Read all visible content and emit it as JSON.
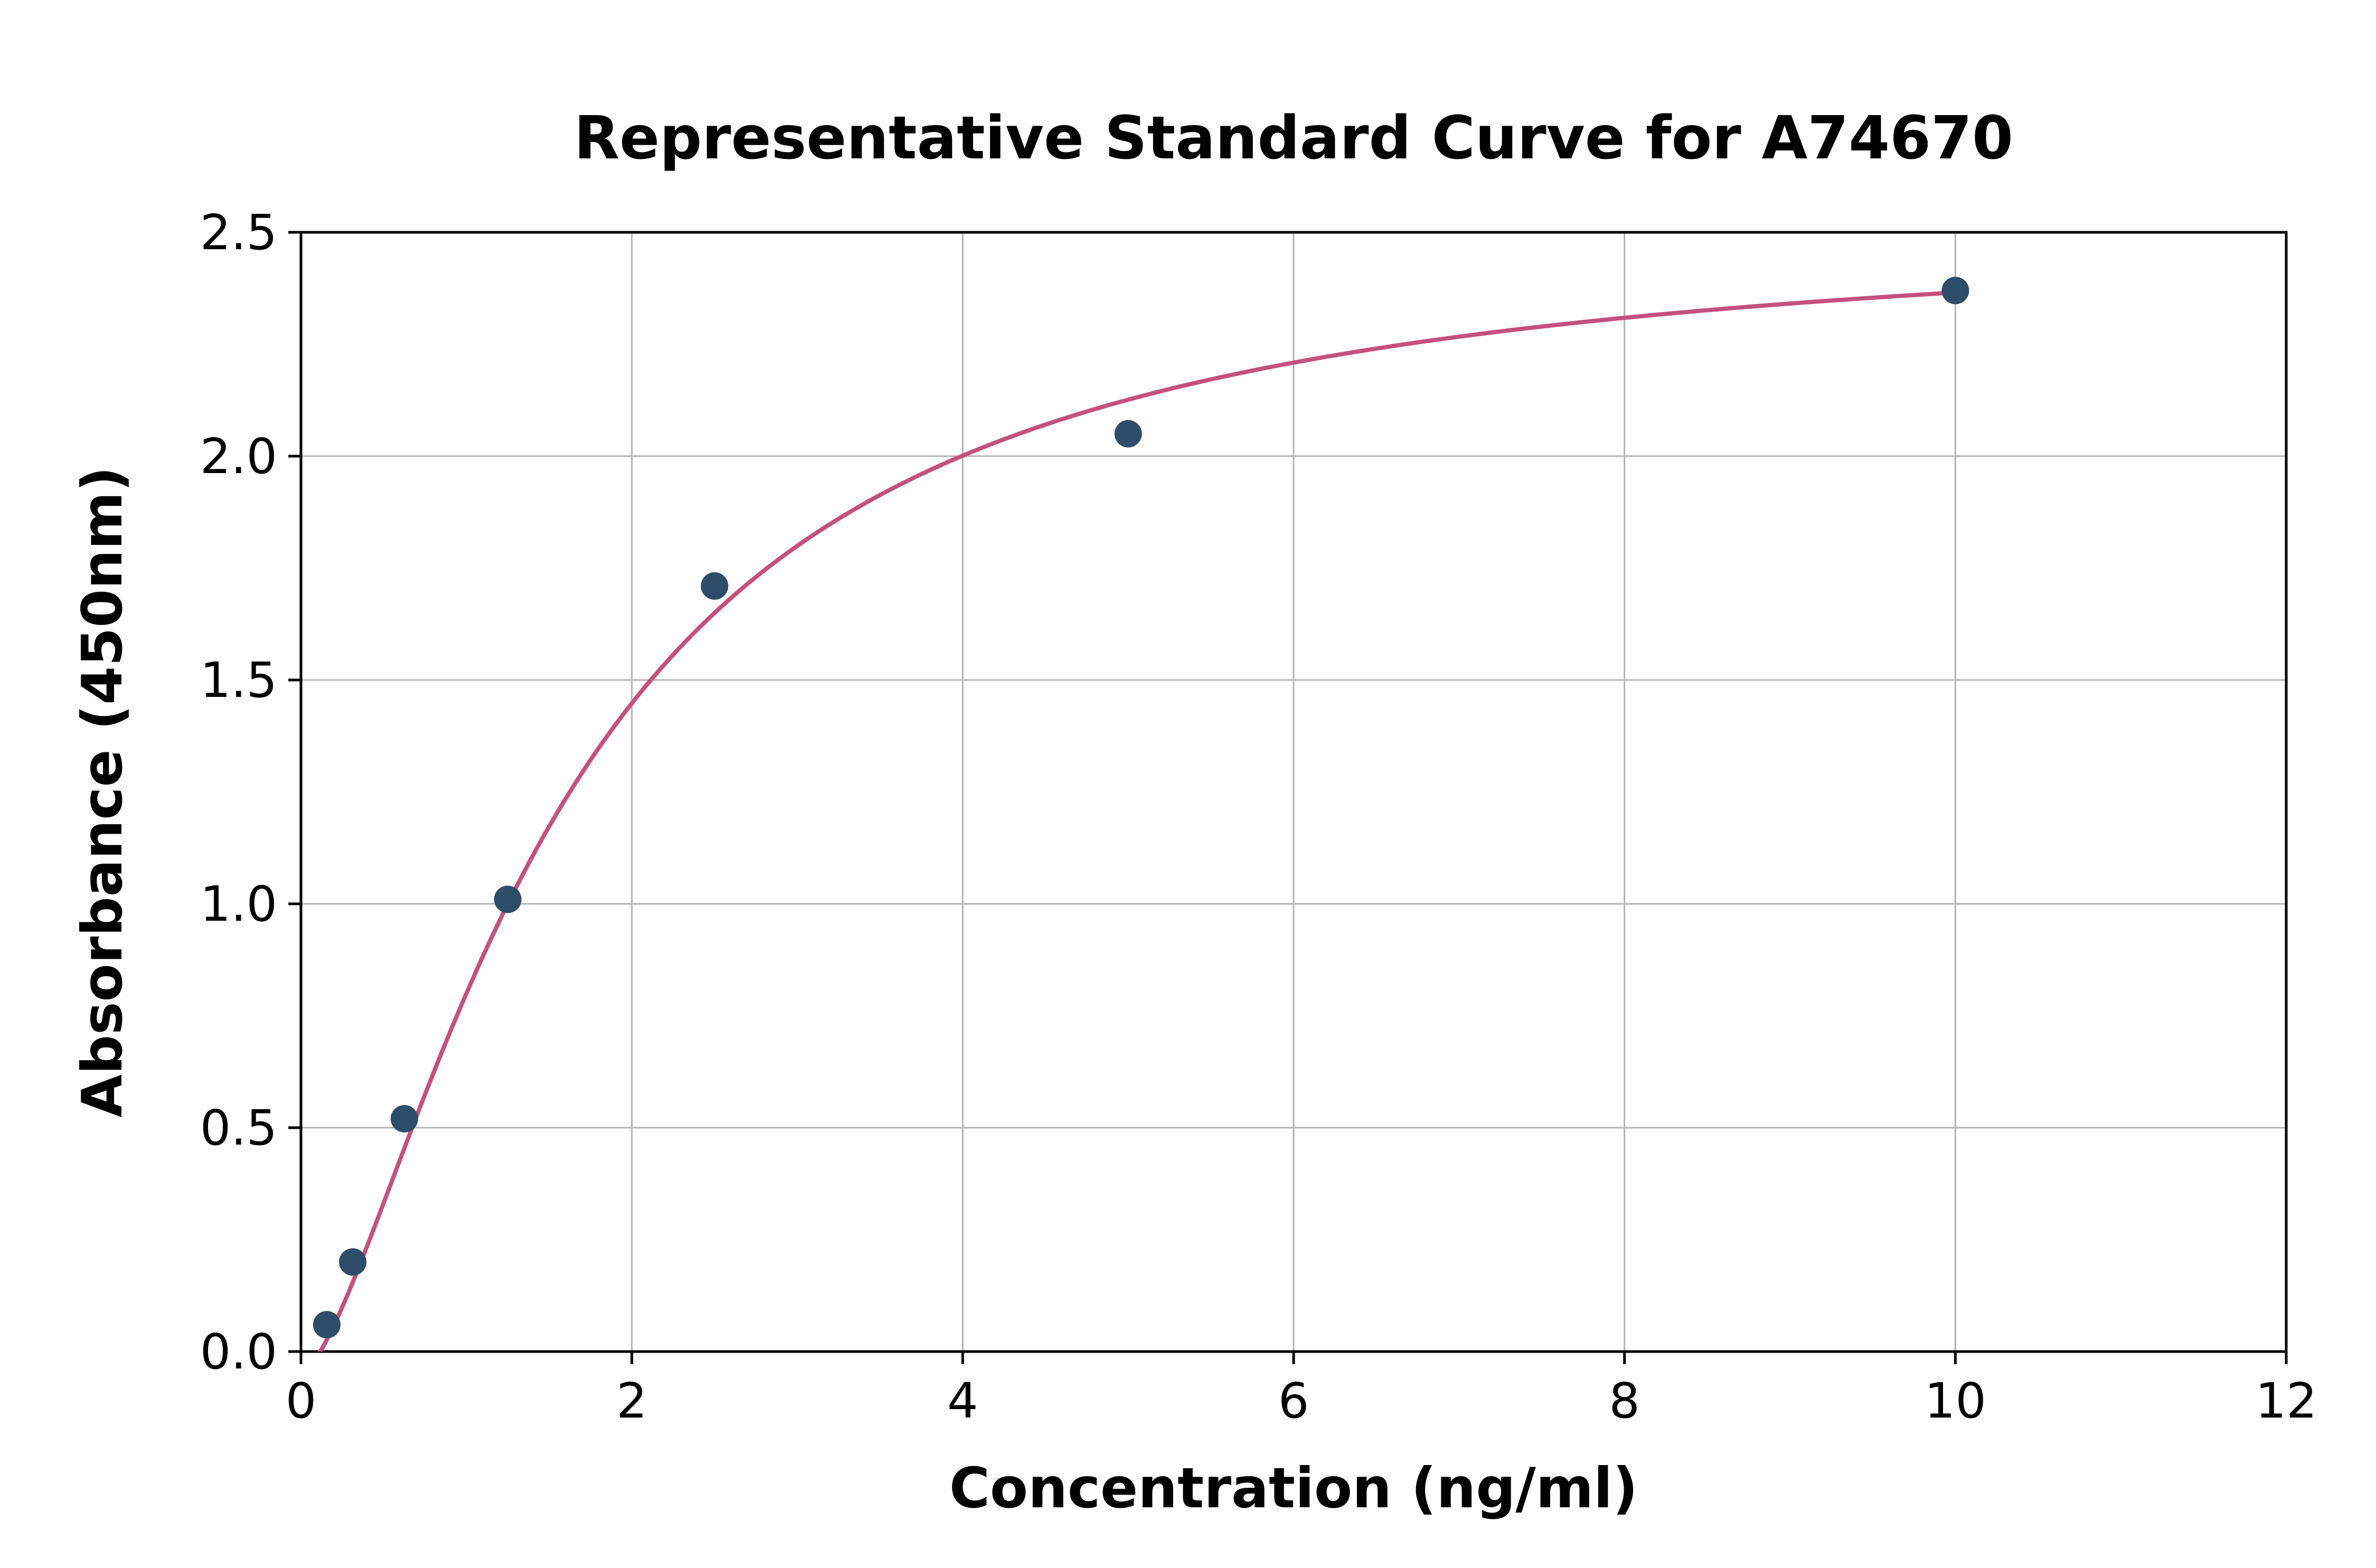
{
  "chart_data": {
    "type": "scatter",
    "title": "Representative Standard Curve for A74670",
    "xlabel": "Concentration (ng/ml)",
    "ylabel": "Absorbance (450nm)",
    "xlim": [
      0,
      12
    ],
    "ylim": [
      0,
      2.5
    ],
    "x_ticks": [
      0,
      2,
      4,
      6,
      8,
      10,
      12
    ],
    "x_tick_labels": [
      "0",
      "2",
      "4",
      "6",
      "8",
      "10",
      "12"
    ],
    "y_ticks": [
      0.0,
      0.5,
      1.0,
      1.5,
      2.0,
      2.5
    ],
    "y_tick_labels": [
      "0.0",
      "0.5",
      "1.0",
      "1.5",
      "2.0",
      "2.5"
    ],
    "grid": true,
    "legend": "none",
    "points": {
      "x": [
        0.156,
        0.313,
        0.625,
        1.25,
        2.5,
        5,
        10
      ],
      "y": [
        0.06,
        0.2,
        0.52,
        1.01,
        1.71,
        2.05,
        2.37
      ]
    },
    "fit": {
      "model": "4PL",
      "a": -0.05,
      "b": 1.5,
      "c": 1.6,
      "d": 2.52,
      "x_range": [
        0.1,
        10
      ]
    },
    "colors": {
      "curve": "#c4517c",
      "points": "#2e4d68",
      "grid": "#b3b3b3",
      "axis": "#000000",
      "background": "#ffffff"
    }
  }
}
